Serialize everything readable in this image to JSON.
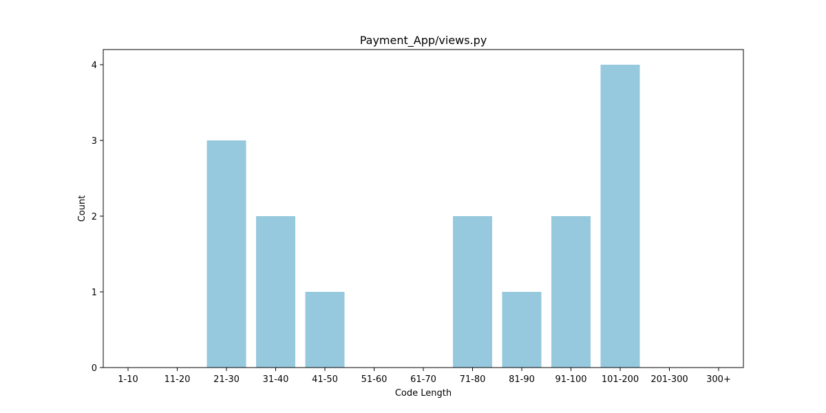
{
  "chart_data": {
    "type": "bar",
    "title": "Payment_App/views.py",
    "xlabel": "Code Length",
    "ylabel": "Count",
    "categories": [
      "1-10",
      "11-20",
      "21-30",
      "31-40",
      "41-50",
      "51-60",
      "61-70",
      "71-80",
      "81-90",
      "91-100",
      "101-200",
      "201-300",
      "300+"
    ],
    "values": [
      0,
      0,
      3,
      2,
      1,
      0,
      0,
      2,
      1,
      2,
      4,
      0,
      0
    ],
    "ylim": [
      0,
      4.2
    ],
    "yticks": [
      0,
      1,
      2,
      3,
      4
    ],
    "bar_color": "#96c9dd",
    "grid": false
  }
}
